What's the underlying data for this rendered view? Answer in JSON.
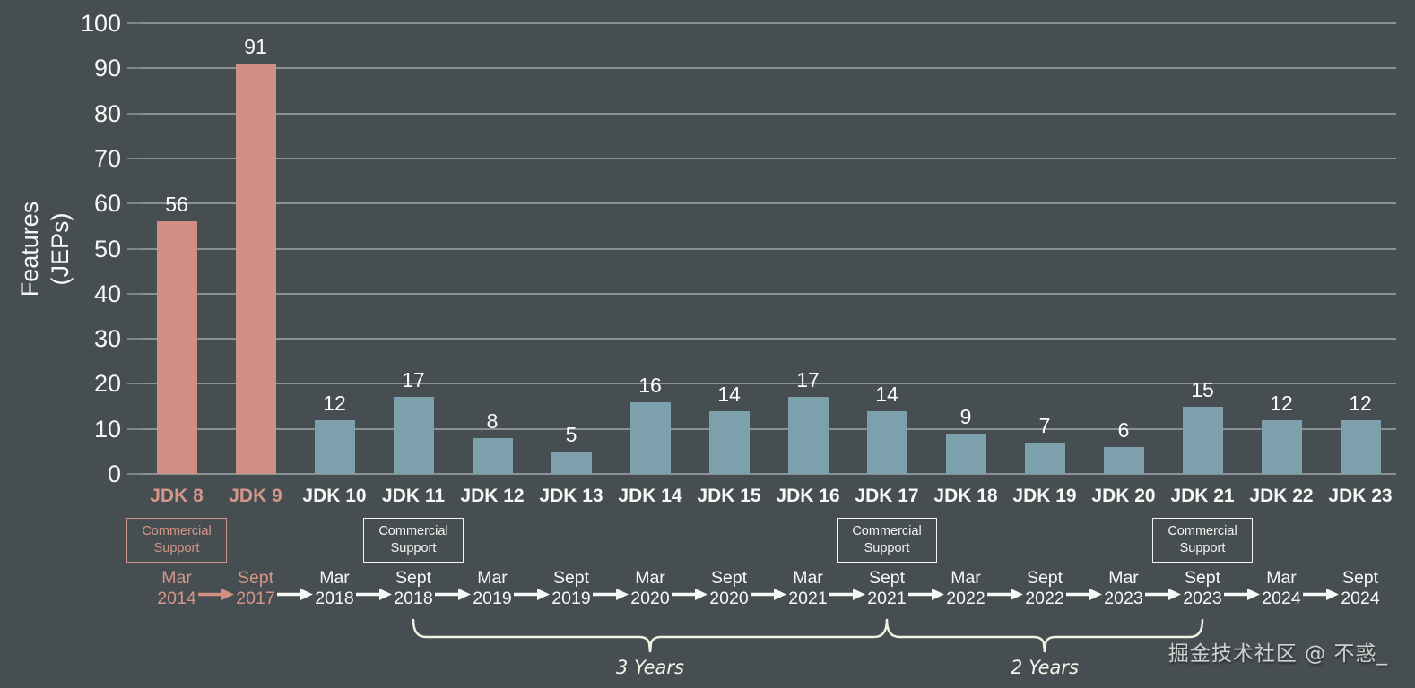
{
  "chart_data": {
    "type": "bar",
    "title": "",
    "ylabel": "Features (JEPs)",
    "ylabel_lines": [
      "Features",
      "(JEPs)"
    ],
    "ylim": [
      0,
      100
    ],
    "ytick_step": 10,
    "grid": true,
    "legend": false,
    "categories": [
      "JDK 8",
      "JDK 9",
      "JDK 10",
      "JDK 11",
      "JDK 12",
      "JDK 13",
      "JDK 14",
      "JDK 15",
      "JDK 16",
      "JDK 17",
      "JDK 18",
      "JDK 19",
      "JDK 20",
      "JDK 21",
      "JDK 22",
      "JDK 23"
    ],
    "values": [
      56,
      91,
      12,
      17,
      8,
      5,
      16,
      14,
      17,
      14,
      9,
      7,
      6,
      15,
      12,
      12
    ],
    "release_dates": [
      [
        "Mar",
        "2014"
      ],
      [
        "Sept",
        "2017"
      ],
      [
        "Mar",
        "2018"
      ],
      [
        "Sept",
        "2018"
      ],
      [
        "Mar",
        "2019"
      ],
      [
        "Sept",
        "2019"
      ],
      [
        "Mar",
        "2020"
      ],
      [
        "Sept",
        "2020"
      ],
      [
        "Mar",
        "2021"
      ],
      [
        "Sept",
        "2021"
      ],
      [
        "Mar",
        "2022"
      ],
      [
        "Sept",
        "2022"
      ],
      [
        "Mar",
        "2023"
      ],
      [
        "Sept",
        "2023"
      ],
      [
        "Mar",
        "2024"
      ],
      [
        "Sept",
        "2024"
      ]
    ],
    "highlighted_categories": [
      "JDK 8",
      "JDK 9"
    ],
    "colors": {
      "background": "#474e51",
      "bar_default": "#7da0ad",
      "bar_highlight": "#d18f83",
      "text": "#f7f9f7",
      "text_highlight": "#d5968a",
      "gridline": "#9aa3a5",
      "brace": "#f0f1e3"
    },
    "commercial_support": {
      "label_lines": [
        "Commercial",
        "Support"
      ],
      "categories": [
        "JDK 8",
        "JDK 11",
        "JDK 17",
        "JDK 21"
      ]
    },
    "braces": [
      {
        "label": "3 Years",
        "from_date": "Sept 2018",
        "to_date": "Sept 2021",
        "from_index": 3,
        "to_index": 9
      },
      {
        "label": "2 Years",
        "from_date": "Sept 2021",
        "to_date": "Sept 2023",
        "from_index": 9,
        "to_index": 13
      }
    ]
  },
  "watermark": "掘金技术社区 @ 不惑_"
}
